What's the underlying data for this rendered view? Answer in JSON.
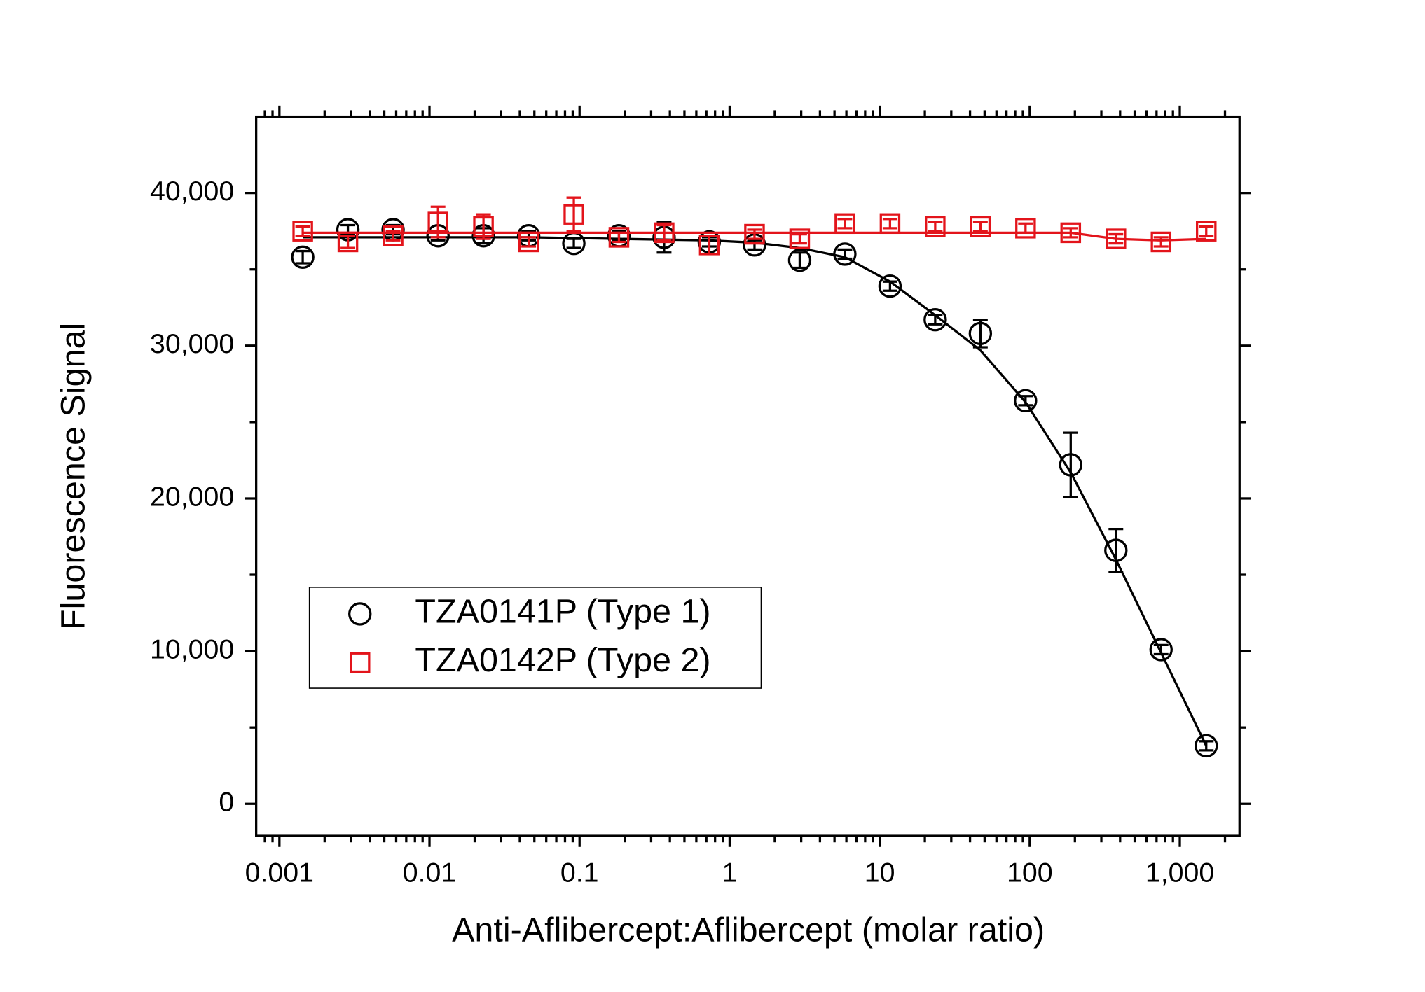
{
  "chart_data": {
    "type": "scatter",
    "x_label": "Anti-Aflibercept:Aflibercept (molar ratio)",
    "y_label": "Fluorescence Signal",
    "x": [
      0.00143,
      0.00286,
      0.00572,
      0.0114,
      0.0229,
      0.0458,
      0.0916,
      0.183,
      0.366,
      0.732,
      1.465,
      2.93,
      5.86,
      11.72,
      23.44,
      46.88,
      93.75,
      187.5,
      375,
      750,
      1500
    ],
    "x_log": true,
    "xlim": [
      0.0007,
      2500
    ],
    "xticks": [
      0.001,
      0.01,
      0.1,
      1,
      10,
      100,
      {
        "value": 1000,
        "label": "1,000"
      }
    ],
    "ylim": [
      -2100,
      45000
    ],
    "yticks": [
      0,
      {
        "value": 10000,
        "label": "10,000"
      },
      {
        "value": 20000,
        "label": "20,000"
      },
      {
        "value": 30000,
        "label": "30,000"
      },
      {
        "value": 40000,
        "label": "40,000"
      }
    ],
    "legend": "center left",
    "series": [
      {
        "name": "TZA0141P (Type 1)",
        "color": "#000000",
        "marker": "circle",
        "values": [
          35800,
          37600,
          37600,
          37200,
          37200,
          37200,
          36700,
          37200,
          37100,
          36800,
          36600,
          35600,
          36000,
          33900,
          31700,
          30800,
          26400,
          22200,
          16600,
          10100,
          3800
        ],
        "errors": [
          400,
          300,
          300,
          300,
          500,
          300,
          300,
          300,
          1000,
          300,
          300,
          500,
          300,
          300,
          300,
          900,
          300,
          2100,
          1400,
          300,
          300
        ],
        "fit": [
          37100,
          37100,
          37100,
          37100,
          37100,
          37100,
          37050,
          37000,
          36950,
          36900,
          36750,
          36400,
          35800,
          34200,
          32000,
          29700,
          26300,
          21700,
          16000,
          9900,
          3800
        ]
      },
      {
        "name": "TZA0142P (Type 2)",
        "color": "#e3141b",
        "marker": "square",
        "values": [
          37500,
          36800,
          37200,
          38100,
          37800,
          36800,
          38600,
          37100,
          37400,
          36600,
          37300,
          37000,
          38000,
          38000,
          37800,
          37800,
          37700,
          37400,
          37000,
          36800,
          37500
        ],
        "errors": [
          300,
          400,
          300,
          1000,
          800,
          300,
          1100,
          300,
          500,
          600,
          300,
          300,
          300,
          300,
          300,
          300,
          300,
          300,
          300,
          300,
          300
        ],
        "fit": [
          37400,
          37400,
          37400,
          37400,
          37400,
          37400,
          37400,
          37400,
          37400,
          37400,
          37400,
          37400,
          37400,
          37400,
          37400,
          37400,
          37400,
          37400,
          37000,
          36900,
          37000
        ]
      }
    ]
  }
}
